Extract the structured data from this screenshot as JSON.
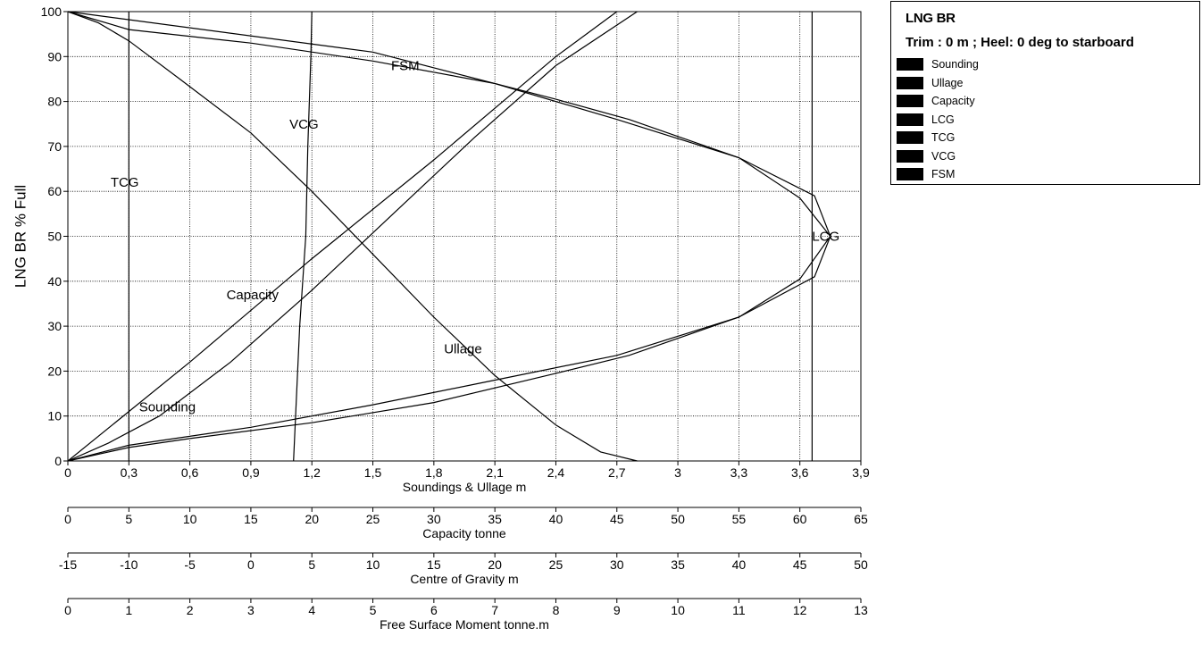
{
  "chart_data": {
    "type": "line",
    "title": "LNG BR",
    "subtitle": "Trim : 0 m ; Heel: 0 deg to starboard",
    "ylabel": "LNG BR  % Full",
    "ylim": [
      0,
      100
    ],
    "yticks": [
      "0",
      "10",
      "20",
      "30",
      "40",
      "50",
      "60",
      "70",
      "80",
      "90",
      "100"
    ],
    "grid": true,
    "legend_position": "top-right",
    "x_axes": [
      {
        "label": "Soundings & Ullage  m",
        "min": 0,
        "max": 3.9,
        "ticks": [
          "0",
          "0,3",
          "0,6",
          "0,9",
          "1,2",
          "1,5",
          "1,8",
          "2,1",
          "2,4",
          "2,7",
          "3",
          "3,3",
          "3,6",
          "3,9"
        ]
      },
      {
        "label": "Capacity  tonne",
        "min": 0,
        "max": 65,
        "ticks": [
          "0",
          "5",
          "10",
          "15",
          "20",
          "25",
          "30",
          "35",
          "40",
          "45",
          "50",
          "55",
          "60",
          "65"
        ]
      },
      {
        "label": "Centre of Gravity  m",
        "min": -15,
        "max": 50,
        "ticks": [
          "-15",
          "-10",
          "-5",
          "0",
          "5",
          "10",
          "15",
          "20",
          "25",
          "30",
          "35",
          "40",
          "45",
          "50"
        ]
      },
      {
        "label": "Free Surface Moment  tonne.m",
        "min": 0,
        "max": 13,
        "ticks": [
          "0",
          "1",
          "2",
          "3",
          "4",
          "5",
          "6",
          "7",
          "8",
          "9",
          "10",
          "11",
          "12",
          "13"
        ]
      }
    ],
    "series": [
      {
        "name": "Sounding",
        "axis": 0,
        "label_at": [
          0.35,
          12
        ],
        "points": [
          [
            0,
            0
          ],
          [
            0.2,
            4
          ],
          [
            0.45,
            10
          ],
          [
            0.8,
            22
          ],
          [
            1.2,
            38
          ],
          [
            1.6,
            55
          ],
          [
            2.0,
            72
          ],
          [
            2.4,
            88
          ],
          [
            2.8,
            100
          ]
        ]
      },
      {
        "name": "Ullage",
        "axis": 0,
        "label_at": [
          1.85,
          25
        ],
        "points": [
          [
            0,
            100
          ],
          [
            0.15,
            97.5
          ],
          [
            0.3,
            93.5
          ],
          [
            0.55,
            85
          ],
          [
            0.9,
            73
          ],
          [
            1.2,
            60
          ],
          [
            1.5,
            46
          ],
          [
            1.8,
            32
          ],
          [
            2.1,
            19
          ],
          [
            2.4,
            8
          ],
          [
            2.62,
            2
          ],
          [
            2.8,
            0
          ]
        ]
      },
      {
        "name": "Capacity",
        "axis": 1,
        "label_at": [
          13,
          37
        ],
        "points": [
          [
            0,
            0
          ],
          [
            10,
            22
          ],
          [
            20,
            45
          ],
          [
            30,
            67
          ],
          [
            40,
            90
          ],
          [
            45,
            100
          ]
        ]
      },
      {
        "name": "LCG",
        "axis": 2,
        "label_at": [
          46,
          50
        ],
        "points": [
          [
            -15,
            0
          ],
          [
            -10,
            3.5
          ],
          [
            0,
            7.5
          ],
          [
            10,
            12.5
          ],
          [
            20,
            18
          ],
          [
            30,
            23.5
          ],
          [
            40,
            32
          ],
          [
            46.2,
            41
          ],
          [
            47.5,
            50
          ],
          [
            46.2,
            59
          ],
          [
            40,
            67.5
          ],
          [
            30,
            76
          ],
          [
            20,
            84
          ],
          [
            10,
            89
          ],
          [
            0,
            93
          ],
          [
            -10,
            96
          ],
          [
            -15,
            100
          ]
        ]
      },
      {
        "name": "TCG",
        "axis": 2,
        "label_at": [
          -11.5,
          62
        ],
        "points": [
          [
            -10,
            0
          ],
          [
            -10,
            100
          ]
        ]
      },
      {
        "name": "VCG",
        "axis": 0,
        "label_at": [
          1.09,
          75
        ],
        "points": [
          [
            1.11,
            0
          ],
          [
            1.12,
            10
          ],
          [
            1.14,
            30
          ],
          [
            1.17,
            50
          ],
          [
            1.18,
            70
          ],
          [
            1.195,
            90
          ],
          [
            1.2,
            100
          ]
        ]
      },
      {
        "name": "FSM",
        "axis": 3,
        "label_at": [
          5.3,
          88
        ],
        "points": [
          [
            0,
            100
          ],
          [
            5,
            91
          ],
          [
            8,
            80.5
          ],
          [
            9.2,
            76
          ],
          [
            11,
            67.5
          ],
          [
            12,
            58.5
          ],
          [
            12.5,
            50
          ],
          [
            12,
            40.5
          ],
          [
            11,
            32
          ],
          [
            9.2,
            23.5
          ],
          [
            8,
            19.5
          ],
          [
            6,
            13
          ],
          [
            4,
            8.5
          ],
          [
            2,
            5
          ],
          [
            1,
            3
          ],
          [
            0,
            0
          ]
        ]
      },
      {
        "name": "LCG",
        "axis": 0,
        "label_at": null,
        "points": [
          [
            3.66,
            0
          ],
          [
            3.66,
            100
          ]
        ]
      }
    ]
  },
  "legend": {
    "title": "LNG BR",
    "subtitle": "Trim : 0 m ; Heel: 0 deg to starboard",
    "items": [
      "Sounding",
      "Ullage",
      "Capacity",
      "LCG",
      "TCG",
      "VCG",
      "FSM"
    ]
  }
}
